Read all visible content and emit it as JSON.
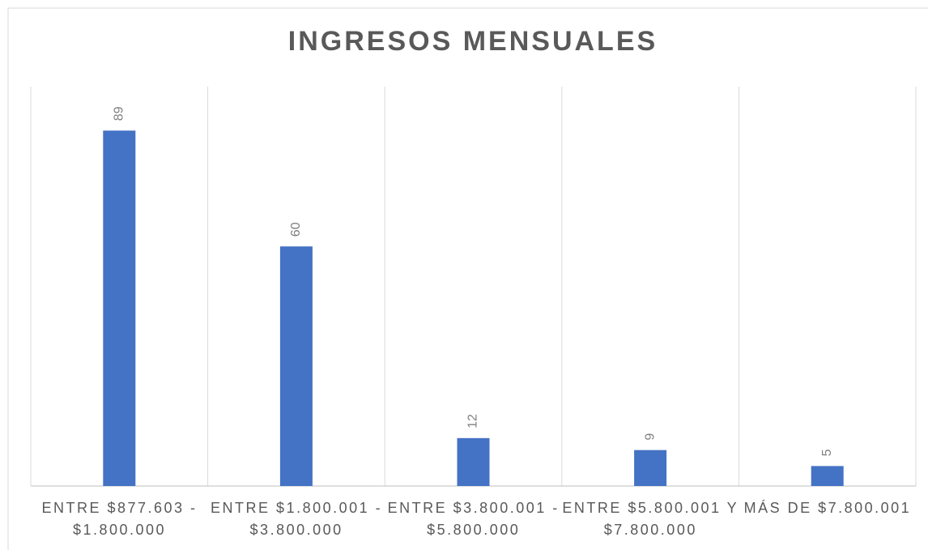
{
  "chart_data": {
    "type": "bar",
    "title": "INGRESOS MENSUALES",
    "categories": [
      "ENTRE $877.603 - $1.800.000",
      "ENTRE $1.800.001 - $3.800.000",
      "ENTRE $3.800.001 - $5.800.000",
      "ENTRE $5.800.001 Y $7.800.000",
      "MÁS DE $7.800.001"
    ],
    "values": [
      89,
      60,
      12,
      9,
      5
    ],
    "color": "#4472c4",
    "ylim": [
      0,
      100
    ]
  }
}
